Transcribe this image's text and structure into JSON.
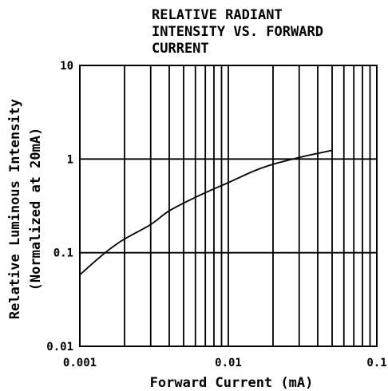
{
  "chart_data": {
    "type": "line",
    "title_lines": [
      "RELATIVE RADIANT",
      "INTENSITY VS. FORWARD",
      "CURRENT"
    ],
    "xlabel": "Forward Current (mA)",
    "ylabel_lines": [
      "Relative Luminous Intensity",
      "(Normalized at 20mA)"
    ],
    "x_scale": "log",
    "y_scale": "log",
    "xlim": [
      0.001,
      0.1
    ],
    "ylim": [
      0.01,
      10
    ],
    "x_ticks": [
      {
        "value": 0.001,
        "label": "0.001"
      },
      {
        "value": 0.01,
        "label": "0.01"
      },
      {
        "value": 0.1,
        "label": "0.1"
      }
    ],
    "y_ticks": [
      {
        "value": 0.01,
        "label": "0.01"
      },
      {
        "value": 0.1,
        "label": "0.1"
      },
      {
        "value": 1,
        "label": "1"
      },
      {
        "value": 10,
        "label": "10"
      }
    ],
    "grid": true,
    "series": [
      {
        "values": [
          {
            "x": 0.001,
            "y": 0.058
          },
          {
            "x": 0.0013,
            "y": 0.084
          },
          {
            "x": 0.0016,
            "y": 0.11
          },
          {
            "x": 0.002,
            "y": 0.14
          },
          {
            "x": 0.003,
            "y": 0.2
          },
          {
            "x": 0.004,
            "y": 0.28
          },
          {
            "x": 0.006,
            "y": 0.39
          },
          {
            "x": 0.008,
            "y": 0.48
          },
          {
            "x": 0.01,
            "y": 0.56
          },
          {
            "x": 0.015,
            "y": 0.75
          },
          {
            "x": 0.02,
            "y": 0.88
          },
          {
            "x": 0.03,
            "y": 1.04
          },
          {
            "x": 0.04,
            "y": 1.15
          },
          {
            "x": 0.05,
            "y": 1.24
          }
        ]
      }
    ]
  }
}
